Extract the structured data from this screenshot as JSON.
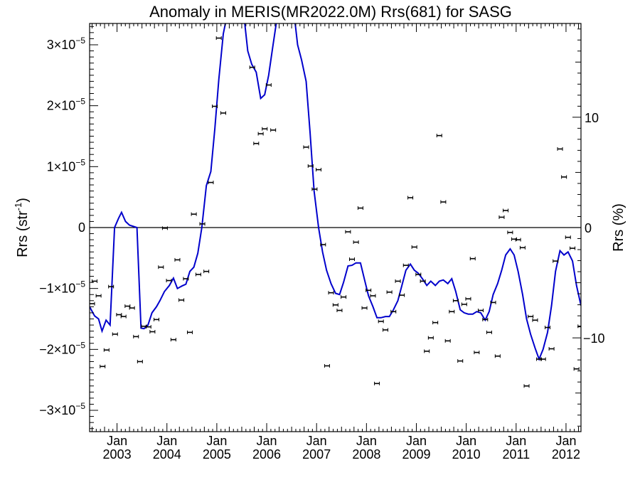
{
  "chart_data": {
    "type": "scatter",
    "title": "Anomaly in MERIS(MR2022.0M) Rrs(681) for SASG",
    "ylabel_left": "Rrs (str",
    "ylabel_left_sup": "-1",
    "ylabel_left_close": ")",
    "ylabel_right": "Rrs (%)",
    "x_range": [
      2002.45,
      2012.3
    ],
    "y_range": [
      -3.35e-05,
      3.35e-05
    ],
    "y_right_range": [
      -18.5,
      18.5
    ],
    "zero_line": true,
    "grid": false,
    "legend": "none",
    "colors": {
      "model_line": "#0000cc",
      "points": "#000000",
      "axes": "#000000"
    },
    "x_ticks": [
      {
        "value": 2003.0,
        "month": "Jan",
        "year": "2003"
      },
      {
        "value": 2004.0,
        "month": "Jan",
        "year": "2004"
      },
      {
        "value": 2005.0,
        "month": "Jan",
        "year": "2005"
      },
      {
        "value": 2006.0,
        "month": "Jan",
        "year": "2006"
      },
      {
        "value": 2007.0,
        "month": "Jan",
        "year": "2007"
      },
      {
        "value": 2008.0,
        "month": "Jan",
        "year": "2008"
      },
      {
        "value": 2009.0,
        "month": "Jan",
        "year": "2009"
      },
      {
        "value": 2010.0,
        "month": "Jan",
        "year": "2010"
      },
      {
        "value": 2011.0,
        "month": "Jan",
        "year": "2011"
      },
      {
        "value": 2012.0,
        "month": "Jan",
        "year": "2012"
      }
    ],
    "y_ticks_left": [
      {
        "value": 3e-05,
        "mant": "3×10",
        "exp": "−5"
      },
      {
        "value": 2e-05,
        "mant": "2×10",
        "exp": "−5"
      },
      {
        "value": 1e-05,
        "mant": "1×10",
        "exp": "−5"
      },
      {
        "value": 0,
        "mant": "0",
        "exp": ""
      },
      {
        "value": -1e-05,
        "mant": "−1×10",
        "exp": "−5"
      },
      {
        "value": -2e-05,
        "mant": "−2×10",
        "exp": "−5"
      },
      {
        "value": -3e-05,
        "mant": "−3×10",
        "exp": "−5"
      }
    ],
    "y_ticks_right": [
      {
        "value": 10,
        "label": "10"
      },
      {
        "value": 0,
        "label": "0"
      },
      {
        "value": -10,
        "label": "−10"
      }
    ],
    "points": [
      [
        2002.5,
        -1.25e-05
      ],
      [
        2002.55,
        -8.8e-06
      ],
      [
        2002.63,
        -1.12e-05
      ],
      [
        2002.71,
        -2.28e-05
      ],
      [
        2002.79,
        -2.01e-05
      ],
      [
        2002.88,
        -9.7e-06
      ],
      [
        2002.96,
        -1.75e-05
      ],
      [
        2003.04,
        -1.43e-05
      ],
      [
        2003.13,
        -1.46e-05
      ],
      [
        2003.21,
        -1.29e-05
      ],
      [
        2003.3,
        -1.32e-05
      ],
      [
        2003.38,
        -1.79e-05
      ],
      [
        2003.46,
        -2.2e-05
      ],
      [
        2003.54,
        -1.62e-05
      ],
      [
        2003.63,
        -1.63e-05
      ],
      [
        2003.71,
        -1.71e-05
      ],
      [
        2003.79,
        -1.51e-05
      ],
      [
        2003.88,
        -6.5e-06
      ],
      [
        2003.96,
        -1e-07
      ],
      [
        2004.04,
        -8.7e-06
      ],
      [
        2004.13,
        -1.84e-05
      ],
      [
        2004.21,
        -5.3e-06
      ],
      [
        2004.29,
        -1.19e-05
      ],
      [
        2004.38,
        -8.4e-06
      ],
      [
        2004.46,
        -1.72e-05
      ],
      [
        2004.54,
        2.2e-06
      ],
      [
        2004.63,
        -7.7e-06
      ],
      [
        2004.71,
        6e-07
      ],
      [
        2004.79,
        -7.2e-06
      ],
      [
        2004.88,
        7.4e-06
      ],
      [
        2004.96,
        1.99e-05
      ],
      [
        2005.04,
        3.11e-05
      ],
      [
        2005.13,
        1.88e-05
      ],
      [
        2005.71,
        2.63e-05
      ],
      [
        2005.79,
        1.38e-05
      ],
      [
        2005.88,
        1.54e-05
      ],
      [
        2005.96,
        1.62e-05
      ],
      [
        2006.04,
        2.34e-05
      ],
      [
        2006.13,
        1.6e-05
      ],
      [
        2006.79,
        1.32e-05
      ],
      [
        2006.88,
        1.01e-05
      ],
      [
        2006.96,
        6.3e-06
      ],
      [
        2007.04,
        9.5e-06
      ],
      [
        2007.13,
        -2.8e-06
      ],
      [
        2007.21,
        -2.27e-05
      ],
      [
        2007.29,
        -1.07e-05
      ],
      [
        2007.38,
        -1.27e-05
      ],
      [
        2007.46,
        -1.36e-05
      ],
      [
        2007.54,
        -1.14e-05
      ],
      [
        2007.63,
        -7e-07
      ],
      [
        2007.71,
        -5.2e-06
      ],
      [
        2007.79,
        -2.4e-06
      ],
      [
        2007.88,
        3.2e-06
      ],
      [
        2007.96,
        -1.32e-05
      ],
      [
        2008.04,
        -1.03e-05
      ],
      [
        2008.13,
        -1.12e-05
      ],
      [
        2008.21,
        -2.56e-05
      ],
      [
        2008.29,
        -1.54e-05
      ],
      [
        2008.38,
        -1.68e-05
      ],
      [
        2008.46,
        -1.06e-05
      ],
      [
        2008.54,
        -1.38e-05
      ],
      [
        2008.63,
        -8.8e-06
      ],
      [
        2008.71,
        -1.11e-05
      ],
      [
        2008.79,
        -6.2e-06
      ],
      [
        2008.88,
        4.9e-06
      ],
      [
        2008.96,
        -3.2e-06
      ],
      [
        2009.04,
        -7.7e-06
      ],
      [
        2009.13,
        -8.8e-06
      ],
      [
        2009.21,
        -2.03e-05
      ],
      [
        2009.29,
        -1.81e-05
      ],
      [
        2009.38,
        -1.56e-05
      ],
      [
        2009.46,
        1.51e-05
      ],
      [
        2009.54,
        4.2e-06
      ],
      [
        2009.63,
        -1.86e-05
      ],
      [
        2009.71,
        -1.38e-05
      ],
      [
        2009.79,
        -1.2e-05
      ],
      [
        2009.88,
        -2.19e-05
      ],
      [
        2009.96,
        -1.26e-05
      ],
      [
        2010.04,
        -1.17e-05
      ],
      [
        2010.13,
        -5.1e-06
      ],
      [
        2010.21,
        -2.05e-05
      ],
      [
        2010.29,
        -1.36e-05
      ],
      [
        2010.38,
        -1.51e-05
      ],
      [
        2010.46,
        -1.72e-05
      ],
      [
        2010.54,
        -1.23e-05
      ],
      [
        2010.63,
        -2.11e-05
      ],
      [
        2010.71,
        1.7e-06
      ],
      [
        2010.79,
        2.8e-06
      ],
      [
        2010.88,
        -8e-07
      ],
      [
        2010.96,
        -1.9e-06
      ],
      [
        2011.04,
        -2e-06
      ],
      [
        2011.13,
        -3.3e-06
      ],
      [
        2011.21,
        -2.6e-05
      ],
      [
        2011.29,
        -1.46e-05
      ],
      [
        2011.38,
        -1.52e-05
      ],
      [
        2011.46,
        -2.16e-05
      ],
      [
        2011.54,
        -2.16e-05
      ],
      [
        2011.63,
        -1.64e-05
      ],
      [
        2011.71,
        -1.99e-05
      ],
      [
        2011.79,
        -5.5e-06
      ],
      [
        2011.88,
        1.29e-05
      ],
      [
        2011.96,
        8.3e-06
      ],
      [
        2012.04,
        -1.6e-06
      ],
      [
        2012.13,
        -3.4e-06
      ],
      [
        2012.21,
        -2.32e-05
      ],
      [
        2012.29,
        -1.62e-05
      ]
    ],
    "model_line": [
      [
        2002.45,
        -1.3e-05
      ],
      [
        2002.55,
        -1.45e-05
      ],
      [
        2002.63,
        -1.5e-05
      ],
      [
        2002.7,
        -1.7e-05
      ],
      [
        2002.78,
        -1.52e-05
      ],
      [
        2002.86,
        -1.6e-05
      ],
      [
        2002.95,
        0.0
      ],
      [
        2003.03,
        1.5e-06
      ],
      [
        2003.09,
        2.5e-06
      ],
      [
        2003.17,
        1e-06
      ],
      [
        2003.25,
        4e-07
      ],
      [
        2003.4,
        0.0
      ],
      [
        2003.48,
        -1.65e-05
      ],
      [
        2003.54,
        -1.66e-05
      ],
      [
        2003.62,
        -1.6e-05
      ],
      [
        2003.7,
        -1.4e-05
      ],
      [
        2003.79,
        -1.3e-05
      ],
      [
        2003.86,
        -1.2e-05
      ],
      [
        2003.95,
        -1.05e-05
      ],
      [
        2004.05,
        -9.5e-06
      ],
      [
        2004.13,
        -8.3e-06
      ],
      [
        2004.21,
        -1e-05
      ],
      [
        2004.3,
        -9.6e-06
      ],
      [
        2004.38,
        -9.3e-06
      ],
      [
        2004.46,
        -7.2e-06
      ],
      [
        2004.54,
        -6.5e-06
      ],
      [
        2004.62,
        -4.2e-06
      ],
      [
        2004.7,
        0.0
      ],
      [
        2004.79,
        6.9e-06
      ],
      [
        2004.88,
        9.2e-06
      ],
      [
        2004.96,
        1.62e-05
      ],
      [
        2005.04,
        2.43e-05
      ],
      [
        2005.13,
        3.18e-05
      ],
      [
        2005.21,
        3.5e-05
      ],
      [
        2005.54,
        3.5e-05
      ],
      [
        2005.62,
        2.9e-05
      ],
      [
        2005.7,
        2.68e-05
      ],
      [
        2005.79,
        2.55e-05
      ],
      [
        2005.88,
        2.12e-05
      ],
      [
        2005.96,
        2.18e-05
      ],
      [
        2006.04,
        2.5e-05
      ],
      [
        2006.12,
        2.96e-05
      ],
      [
        2006.2,
        3.4e-05
      ],
      [
        2006.25,
        3.5e-05
      ],
      [
        2006.55,
        3.5e-05
      ],
      [
        2006.62,
        3e-05
      ],
      [
        2006.7,
        2.75e-05
      ],
      [
        2006.79,
        2.4e-05
      ],
      [
        2006.87,
        1.55e-05
      ],
      [
        2006.95,
        6e-06
      ],
      [
        2007.04,
        0.0
      ],
      [
        2007.12,
        -4e-06
      ],
      [
        2007.2,
        -7e-06
      ],
      [
        2007.29,
        -9.2e-06
      ],
      [
        2007.38,
        -1.08e-05
      ],
      [
        2007.46,
        -1.1e-05
      ],
      [
        2007.54,
        -9e-06
      ],
      [
        2007.63,
        -6.3e-06
      ],
      [
        2007.71,
        -6.2e-06
      ],
      [
        2007.79,
        -5.8e-06
      ],
      [
        2007.88,
        -5.8e-06
      ],
      [
        2007.96,
        -8.5e-06
      ],
      [
        2008.04,
        -1.12e-05
      ],
      [
        2008.13,
        -1.3e-05
      ],
      [
        2008.21,
        -1.48e-05
      ],
      [
        2008.29,
        -1.48e-05
      ],
      [
        2008.38,
        -1.46e-05
      ],
      [
        2008.46,
        -1.46e-05
      ],
      [
        2008.54,
        -1.35e-05
      ],
      [
        2008.63,
        -1.2e-05
      ],
      [
        2008.71,
        -9.5e-06
      ],
      [
        2008.79,
        -7e-06
      ],
      [
        2008.88,
        -6e-06
      ],
      [
        2008.96,
        -7e-06
      ],
      [
        2009.04,
        -7.5e-06
      ],
      [
        2009.13,
        -8.5e-06
      ],
      [
        2009.21,
        -9.5e-06
      ],
      [
        2009.29,
        -8.8e-06
      ],
      [
        2009.38,
        -9.5e-06
      ],
      [
        2009.46,
        -8.8e-06
      ],
      [
        2009.54,
        -8.6e-06
      ],
      [
        2009.63,
        -9.2e-06
      ],
      [
        2009.71,
        -8.4e-06
      ],
      [
        2009.79,
        -1.05e-05
      ],
      [
        2009.88,
        -1.35e-05
      ],
      [
        2009.96,
        -1.4e-05
      ],
      [
        2010.04,
        -1.42e-05
      ],
      [
        2010.13,
        -1.42e-05
      ],
      [
        2010.21,
        -1.38e-05
      ],
      [
        2010.29,
        -1.4e-05
      ],
      [
        2010.38,
        -1.52e-05
      ],
      [
        2010.46,
        -1.38e-05
      ],
      [
        2010.54,
        -1.1e-05
      ],
      [
        2010.63,
        -9.2e-06
      ],
      [
        2010.71,
        -7e-06
      ],
      [
        2010.79,
        -4.5e-06
      ],
      [
        2010.88,
        -3.5e-06
      ],
      [
        2010.96,
        -4.5e-06
      ],
      [
        2011.04,
        -7.2e-06
      ],
      [
        2011.13,
        -1.1e-05
      ],
      [
        2011.21,
        -1.5e-05
      ],
      [
        2011.29,
        -1.75e-05
      ],
      [
        2011.38,
        -1.98e-05
      ],
      [
        2011.46,
        -2.16e-05
      ],
      [
        2011.54,
        -2e-05
      ],
      [
        2011.63,
        -1.72e-05
      ],
      [
        2011.71,
        -1.28e-05
      ],
      [
        2011.79,
        -7.2e-06
      ],
      [
        2011.88,
        -3.8e-06
      ],
      [
        2011.96,
        -4.5e-06
      ],
      [
        2012.04,
        -4e-06
      ],
      [
        2012.13,
        -5.5e-06
      ],
      [
        2012.21,
        -9.5e-06
      ],
      [
        2012.3,
        -1.28e-05
      ]
    ]
  }
}
